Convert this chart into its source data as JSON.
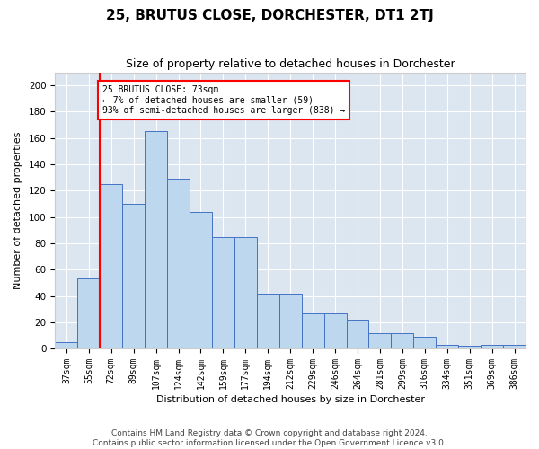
{
  "title": "25, BRUTUS CLOSE, DORCHESTER, DT1 2TJ",
  "subtitle": "Size of property relative to detached houses in Dorchester",
  "xlabel": "Distribution of detached houses by size in Dorchester",
  "ylabel": "Number of detached properties",
  "footer_line1": "Contains HM Land Registry data © Crown copyright and database right 2024.",
  "footer_line2": "Contains public sector information licensed under the Open Government Licence v3.0.",
  "bins": [
    "37sqm",
    "55sqm",
    "72sqm",
    "89sqm",
    "107sqm",
    "124sqm",
    "142sqm",
    "159sqm",
    "177sqm",
    "194sqm",
    "212sqm",
    "229sqm",
    "246sqm",
    "264sqm",
    "281sqm",
    "299sqm",
    "316sqm",
    "334sqm",
    "351sqm",
    "369sqm",
    "386sqm"
  ],
  "bar_heights": [
    5,
    53,
    125,
    110,
    165,
    129,
    104,
    85,
    85,
    42,
    42,
    27,
    27,
    22,
    12,
    12,
    9,
    3,
    2,
    3,
    3
  ],
  "bar_color": "#bdd7ee",
  "bar_edge_color": "#4472c4",
  "background_color": "#dce6f1",
  "annotation_line1": "25 BRUTUS CLOSE: 73sqm",
  "annotation_line2": "← 7% of detached houses are smaller (59)",
  "annotation_line3": "93% of semi-detached houses are larger (838) →",
  "red_line_bin": 2,
  "ylim": [
    0,
    210
  ],
  "yticks": [
    0,
    20,
    40,
    60,
    80,
    100,
    120,
    140,
    160,
    180,
    200
  ],
  "title_fontsize": 11,
  "subtitle_fontsize": 9,
  "xlabel_fontsize": 8,
  "ylabel_fontsize": 8,
  "tick_fontsize": 7,
  "footer_fontsize": 6.5
}
